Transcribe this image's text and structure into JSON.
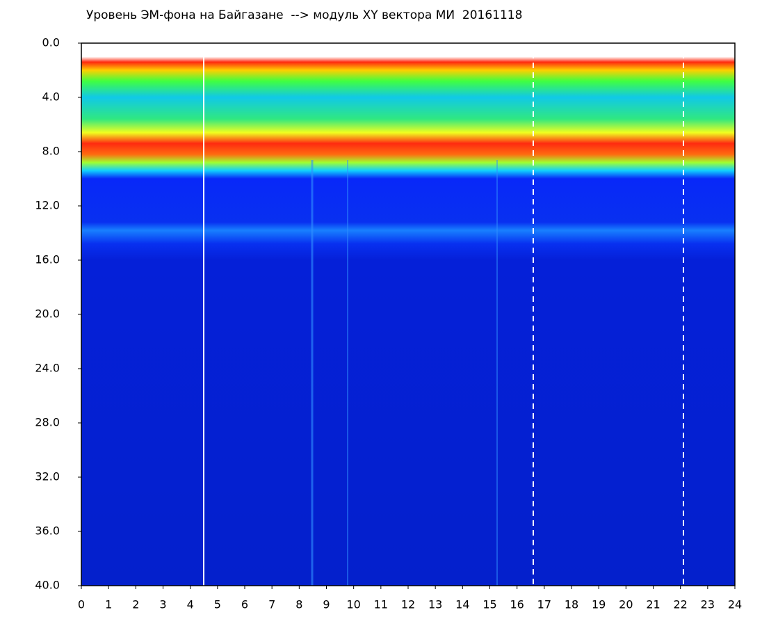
{
  "chart_data": {
    "type": "heatmap",
    "title": "Уровень ЭМ-фона на Байгазане  --> модуль XY вектора МИ  20161118",
    "xlim": [
      0,
      24
    ],
    "xticks": [
      0,
      1,
      2,
      3,
      4,
      5,
      6,
      7,
      8,
      9,
      10,
      11,
      12,
      13,
      14,
      15,
      16,
      17,
      18,
      19,
      20,
      21,
      22,
      23,
      24
    ],
    "ylim": [
      40,
      0
    ],
    "yticks": [
      {
        "value": 0,
        "label": "0.0"
      },
      {
        "value": 4,
        "label": "4.0"
      },
      {
        "value": 8,
        "label": "8.0"
      },
      {
        "value": 12,
        "label": "12.0"
      },
      {
        "value": 16,
        "label": "16.0"
      },
      {
        "value": 20,
        "label": "20.0"
      },
      {
        "value": 24,
        "label": "24.0"
      },
      {
        "value": 28,
        "label": "28.0"
      },
      {
        "value": 32,
        "label": "32.0"
      },
      {
        "value": 36,
        "label": "36.0"
      },
      {
        "value": 40,
        "label": "40.0"
      }
    ]
  }
}
